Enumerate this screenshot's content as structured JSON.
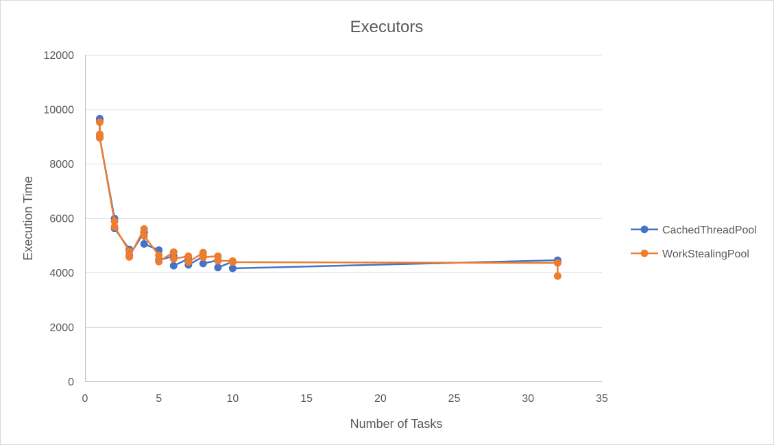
{
  "chart_data": {
    "type": "scatter",
    "title": "Executors",
    "xlabel": "Number of Tasks",
    "ylabel": "Execution Time",
    "xlim": [
      0,
      35
    ],
    "ylim": [
      0,
      12000
    ],
    "xticks": [
      "0",
      "5",
      "10",
      "15",
      "20",
      "25",
      "30",
      "35"
    ],
    "yticks": [
      "0",
      "2000",
      "4000",
      "6000",
      "8000",
      "10000",
      "12000"
    ],
    "grid": true,
    "legend_position": "right",
    "series": [
      {
        "name": "CachedThreadPool",
        "color": "#4472c4",
        "points": [
          [
            1,
            9650
          ],
          [
            1,
            9580
          ],
          [
            1,
            9000
          ],
          [
            1,
            8950
          ],
          [
            2,
            5980
          ],
          [
            2,
            5620
          ],
          [
            3,
            4850
          ],
          [
            3,
            4620
          ],
          [
            4,
            5480
          ],
          [
            4,
            5050
          ],
          [
            5,
            4820
          ],
          [
            5,
            4450
          ],
          [
            6,
            4600
          ],
          [
            6,
            4250
          ],
          [
            7,
            4500
          ],
          [
            7,
            4280
          ],
          [
            8,
            4580
          ],
          [
            8,
            4330
          ],
          [
            9,
            4450
          ],
          [
            9,
            4180
          ],
          [
            10,
            4400
          ],
          [
            10,
            4150
          ],
          [
            32,
            4450
          ],
          [
            32,
            4400
          ]
        ]
      },
      {
        "name": "WorkStealingPool",
        "color": "#ed7d31",
        "points": [
          [
            1,
            9520
          ],
          [
            1,
            9080
          ],
          [
            1,
            8950
          ],
          [
            2,
            5880
          ],
          [
            2,
            5680
          ],
          [
            3,
            4780
          ],
          [
            3,
            4570
          ],
          [
            4,
            5600
          ],
          [
            4,
            5350
          ],
          [
            5,
            4630
          ],
          [
            5,
            4400
          ],
          [
            6,
            4750
          ],
          [
            6,
            4500
          ],
          [
            7,
            4600
          ],
          [
            7,
            4380
          ],
          [
            8,
            4730
          ],
          [
            8,
            4560
          ],
          [
            9,
            4600
          ],
          [
            9,
            4430
          ],
          [
            10,
            4420
          ],
          [
            10,
            4380
          ],
          [
            32,
            4350
          ],
          [
            32,
            3870
          ]
        ]
      }
    ]
  }
}
